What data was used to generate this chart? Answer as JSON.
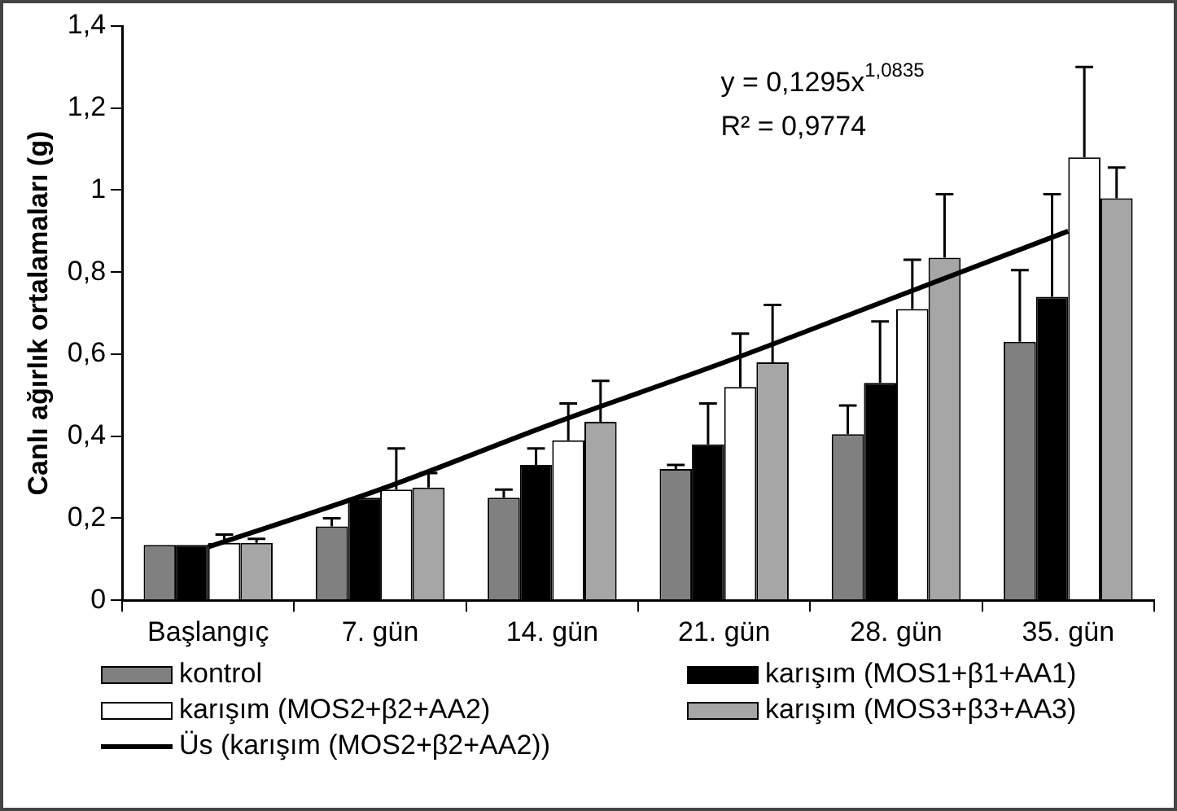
{
  "chart_data": {
    "type": "bar",
    "ylabel": "Canlı ağırlık ortalamaları (g)",
    "categories": [
      "Başlangıç",
      "7. gün",
      "14. gün",
      "21. gün",
      "28. gün",
      "35. gün"
    ],
    "series": [
      {
        "name": "kontrol",
        "color": "#808080",
        "values": [
          0.135,
          0.18,
          0.25,
          0.32,
          0.405,
          0.63
        ],
        "errors": [
          null,
          [
            0.18,
            0.2
          ],
          [
            0.25,
            0.27
          ],
          [
            0.32,
            0.33
          ],
          [
            0.405,
            0.475
          ],
          [
            0.63,
            0.805
          ]
        ]
      },
      {
        "name": "karışım (MOS1+β1+AA1)",
        "color": "#000000",
        "values": [
          0.135,
          0.25,
          0.33,
          0.38,
          0.53,
          0.74
        ],
        "errors": [
          null,
          null,
          [
            0.33,
            0.37
          ],
          [
            0.38,
            0.48
          ],
          [
            0.53,
            0.68
          ],
          [
            0.74,
            0.99
          ]
        ]
      },
      {
        "name": "karışım (MOS2+β2+AA2)",
        "color": "#ffffff",
        "values": [
          0.14,
          0.27,
          0.39,
          0.52,
          0.71,
          1.08
        ],
        "errors": [
          [
            0.14,
            0.16
          ],
          [
            0.27,
            0.37
          ],
          [
            0.39,
            0.48
          ],
          [
            0.52,
            0.65
          ],
          [
            0.71,
            0.83
          ],
          [
            1.08,
            1.3
          ]
        ]
      },
      {
        "name": "karışım (MOS3+β3+AA3)",
        "color": "#a6a6a6",
        "values": [
          0.14,
          0.275,
          0.435,
          0.58,
          0.835,
          0.98
        ],
        "errors": [
          [
            0.14,
            0.15
          ],
          [
            0.275,
            0.31
          ],
          [
            0.435,
            0.535
          ],
          [
            0.58,
            0.72
          ],
          [
            0.835,
            0.99
          ],
          [
            0.98,
            1.055
          ]
        ]
      },
      {
        "name": "Üs (karışım (MOS2+β2+AA2))",
        "type": "line",
        "color": "#000000",
        "values": [
          0.13,
          0.27,
          0.43,
          0.58,
          0.74,
          0.9
        ]
      }
    ],
    "ylim": [
      0,
      1.4
    ],
    "yticks": [
      0,
      {
        "value": 0.2,
        "label": "0,2"
      },
      {
        "value": 0.4,
        "label": "0,4"
      },
      {
        "value": 0.6,
        "label": "0,6"
      },
      {
        "value": 0.8,
        "label": "0,8"
      },
      1,
      {
        "value": 1.2,
        "label": "1,2"
      },
      {
        "value": 1.4,
        "label": "1,4"
      }
    ],
    "annotations": [
      "y = 0,1295x$^{1,0835}$",
      "R² = 0,9774"
    ],
    "grid": false,
    "legend": "bottom",
    "marker": "none",
    "line_style": "solid"
  }
}
